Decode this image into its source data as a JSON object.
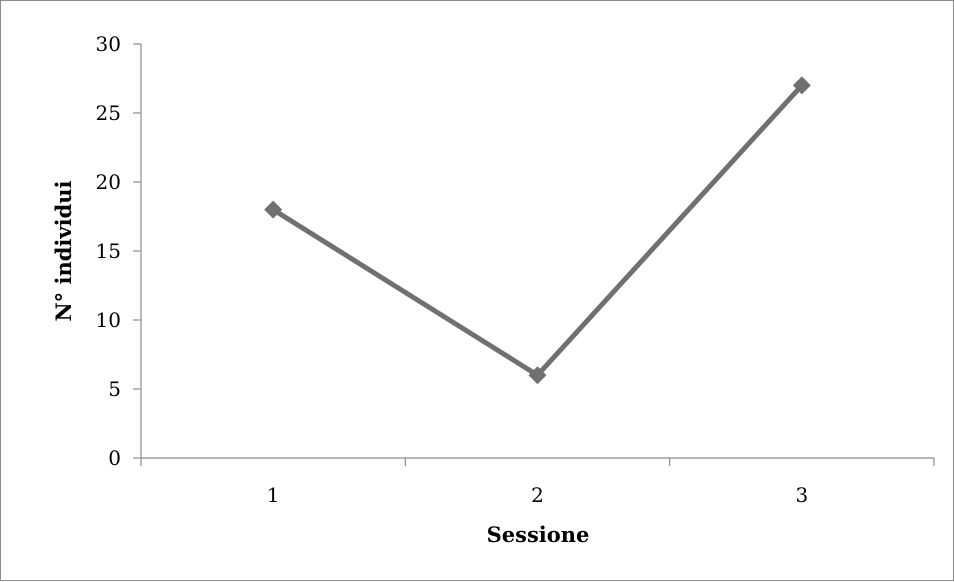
{
  "chart_data": {
    "type": "line",
    "title": "",
    "xlabel": "Sessione",
    "ylabel": "N° individui",
    "categories": [
      "1",
      "2",
      "3"
    ],
    "series": [
      {
        "values": [
          18,
          6,
          27
        ],
        "color": "#707070",
        "marker": "diamond"
      }
    ],
    "ylim": [
      0,
      30
    ],
    "yticks": [
      0,
      5,
      10,
      15,
      20,
      25,
      30
    ],
    "ytick_labels": [
      "0",
      "5",
      "10",
      "15",
      "20",
      "25",
      "30"
    ],
    "grid": false,
    "legend": false,
    "axis_color": "#8c8c8c"
  }
}
